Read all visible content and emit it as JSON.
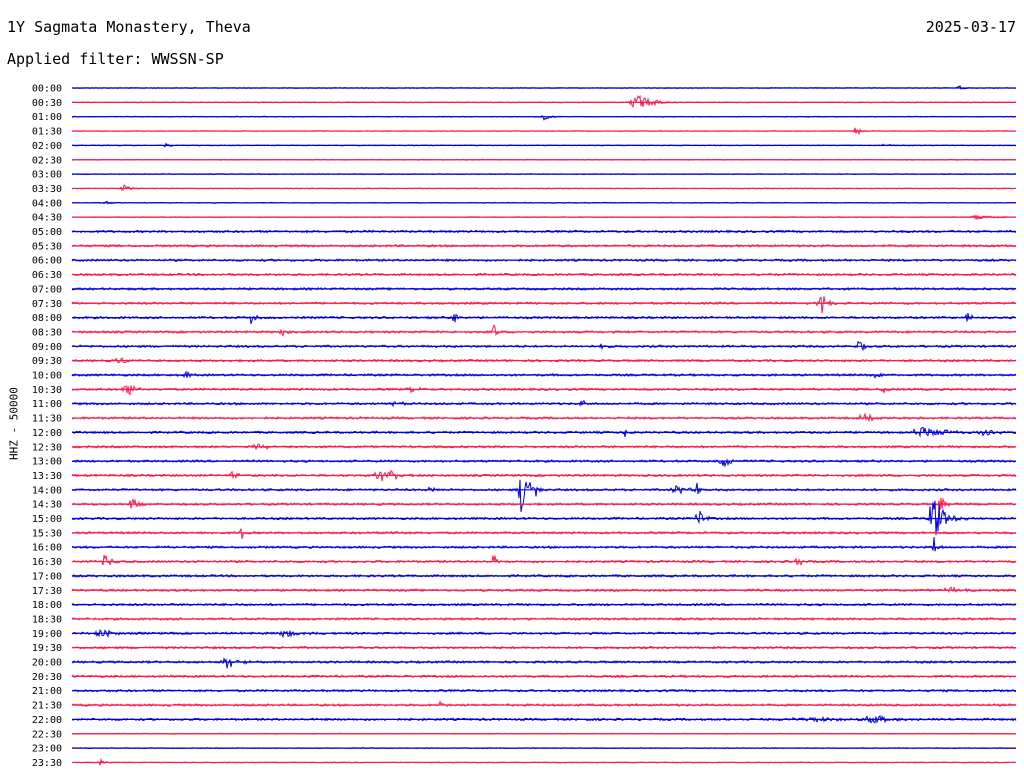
{
  "header": {
    "station": "1Y Sagmata Monastery, Theva",
    "date": "2025-03-17",
    "filter": "Applied filter: WWSSN-SP"
  },
  "chart_data": {
    "type": "line",
    "title": "1Y Sagmata Monastery, Theva",
    "ylabel": "HHZ - 50000",
    "colors": [
      "#0000dd",
      "#ff1a4a"
    ],
    "rows": [
      {
        "label": "00:00",
        "events": [
          {
            "x": 0.94,
            "amp": 3,
            "width": 0.01
          }
        ]
      },
      {
        "label": "00:30",
        "events": [
          {
            "x": 0.6,
            "amp": 9,
            "width": 0.04
          }
        ]
      },
      {
        "label": "01:00",
        "events": [
          {
            "x": 0.5,
            "amp": 3,
            "width": 0.02
          }
        ]
      },
      {
        "label": "01:30",
        "events": [
          {
            "x": 0.83,
            "amp": 8,
            "width": 0.01
          }
        ]
      },
      {
        "label": "02:00",
        "events": [
          {
            "x": 0.1,
            "amp": 3,
            "width": 0.01
          },
          {
            "x": 0.86,
            "amp": 2,
            "width": 0.02
          }
        ]
      },
      {
        "label": "02:30",
        "events": []
      },
      {
        "label": "03:00",
        "events": []
      },
      {
        "label": "03:30",
        "events": [
          {
            "x": 0.055,
            "amp": 4,
            "width": 0.02
          }
        ]
      },
      {
        "label": "04:00",
        "events": [
          {
            "x": 0.035,
            "amp": 3,
            "width": 0.01
          }
        ]
      },
      {
        "label": "04:30",
        "events": [
          {
            "x": 0.96,
            "amp": 3,
            "width": 0.04
          }
        ]
      },
      {
        "label": "05:00",
        "events": []
      },
      {
        "label": "05:30",
        "events": []
      },
      {
        "label": "06:00",
        "events": []
      },
      {
        "label": "06:30",
        "events": []
      },
      {
        "label": "07:00",
        "events": []
      },
      {
        "label": "07:30",
        "events": [
          {
            "x": 0.794,
            "amp": 10,
            "width": 0.02
          }
        ]
      },
      {
        "label": "08:00",
        "events": [
          {
            "x": 0.19,
            "amp": 10,
            "width": 0.01
          },
          {
            "x": 0.405,
            "amp": 7,
            "width": 0.01
          },
          {
            "x": 0.948,
            "amp": 7,
            "width": 0.01
          }
        ]
      },
      {
        "label": "08:30",
        "events": [
          {
            "x": 0.222,
            "amp": 6,
            "width": 0.01
          },
          {
            "x": 0.447,
            "amp": 8,
            "width": 0.01
          }
        ]
      },
      {
        "label": "09:00",
        "events": [
          {
            "x": 0.562,
            "amp": 4,
            "width": 0.01
          },
          {
            "x": 0.834,
            "amp": 10,
            "width": 0.01
          }
        ]
      },
      {
        "label": "09:30",
        "events": [
          {
            "x": 0.05,
            "amp": 5,
            "width": 0.02
          }
        ]
      },
      {
        "label": "10:00",
        "events": [
          {
            "x": 0.12,
            "amp": 7,
            "width": 0.01
          },
          {
            "x": 0.85,
            "amp": 3,
            "width": 0.02
          }
        ]
      },
      {
        "label": "10:30",
        "events": [
          {
            "x": 0.06,
            "amp": 7,
            "width": 0.03
          },
          {
            "x": 0.36,
            "amp": 3,
            "width": 0.02
          },
          {
            "x": 0.86,
            "amp": 5,
            "width": 0.01
          }
        ]
      },
      {
        "label": "11:00",
        "events": [
          {
            "x": 0.34,
            "amp": 4,
            "width": 0.02
          },
          {
            "x": 0.54,
            "amp": 5,
            "width": 0.01
          }
        ]
      },
      {
        "label": "11:30",
        "events": [
          {
            "x": 0.84,
            "amp": 3,
            "width": 0.05
          }
        ]
      },
      {
        "label": "12:00",
        "events": [
          {
            "x": 0.586,
            "amp": 6,
            "width": 0.01
          },
          {
            "x": 0.9,
            "amp": 7,
            "width": 0.06
          },
          {
            "x": 0.965,
            "amp": 4,
            "width": 0.03
          }
        ]
      },
      {
        "label": "12:30",
        "events": [
          {
            "x": 0.2,
            "amp": 3,
            "width": 0.04
          }
        ]
      },
      {
        "label": "13:00",
        "events": [
          {
            "x": 0.69,
            "amp": 6,
            "width": 0.025
          }
        ]
      },
      {
        "label": "13:30",
        "events": [
          {
            "x": 0.17,
            "amp": 4,
            "width": 0.02
          },
          {
            "x": 0.33,
            "amp": 6,
            "width": 0.05
          }
        ]
      },
      {
        "label": "14:00",
        "events": [
          {
            "x": 0.477,
            "amp": 30,
            "width": 0.02
          },
          {
            "x": 0.49,
            "amp": 7,
            "width": 0.01
          },
          {
            "x": 0.38,
            "amp": 4,
            "width": 0.01
          },
          {
            "x": 0.64,
            "amp": 5,
            "width": 0.03
          },
          {
            "x": 0.662,
            "amp": 6,
            "width": 0.01
          }
        ]
      },
      {
        "label": "14:30",
        "events": [
          {
            "x": 0.063,
            "amp": 6,
            "width": 0.02
          },
          {
            "x": 0.92,
            "amp": 9,
            "width": 0.015
          }
        ]
      },
      {
        "label": "15:00",
        "events": [
          {
            "x": 0.663,
            "amp": 12,
            "width": 0.015
          },
          {
            "x": 0.913,
            "amp": 24,
            "width": 0.03
          }
        ]
      },
      {
        "label": "15:30",
        "events": [
          {
            "x": 0.18,
            "amp": 6,
            "width": 0.01
          },
          {
            "x": 0.34,
            "amp": 4,
            "width": 0.01
          }
        ]
      },
      {
        "label": "16:00",
        "events": [
          {
            "x": 0.913,
            "amp": 14,
            "width": 0.01
          }
        ]
      },
      {
        "label": "16:30",
        "events": [
          {
            "x": 0.035,
            "amp": 7,
            "width": 0.02
          },
          {
            "x": 0.447,
            "amp": 8,
            "width": 0.01
          },
          {
            "x": 0.768,
            "amp": 8,
            "width": 0.01
          }
        ]
      },
      {
        "label": "17:00",
        "events": []
      },
      {
        "label": "17:30",
        "events": [
          {
            "x": 0.93,
            "amp": 3,
            "width": 0.03
          }
        ]
      },
      {
        "label": "18:00",
        "events": []
      },
      {
        "label": "18:30",
        "events": []
      },
      {
        "label": "19:00",
        "events": [
          {
            "x": 0.03,
            "amp": 4,
            "width": 0.04
          },
          {
            "x": 0.225,
            "amp": 4,
            "width": 0.04
          }
        ]
      },
      {
        "label": "19:30",
        "events": [
          {
            "x": 0.725,
            "amp": 4,
            "width": 0.01
          }
        ]
      },
      {
        "label": "20:00",
        "events": [
          {
            "x": 0.165,
            "amp": 7,
            "width": 0.03
          }
        ]
      },
      {
        "label": "20:30",
        "events": []
      },
      {
        "label": "21:00",
        "events": []
      },
      {
        "label": "21:30",
        "events": [
          {
            "x": 0.39,
            "amp": 4,
            "width": 0.01
          }
        ]
      },
      {
        "label": "22:00",
        "events": [
          {
            "x": 0.78,
            "amp": 2,
            "width": 0.12
          },
          {
            "x": 0.85,
            "amp": 4,
            "width": 0.05
          }
        ]
      },
      {
        "label": "22:30",
        "events": []
      },
      {
        "label": "23:00",
        "events": []
      },
      {
        "label": "23:30",
        "events": [
          {
            "x": 0.03,
            "amp": 4,
            "width": 0.01
          }
        ]
      }
    ]
  }
}
